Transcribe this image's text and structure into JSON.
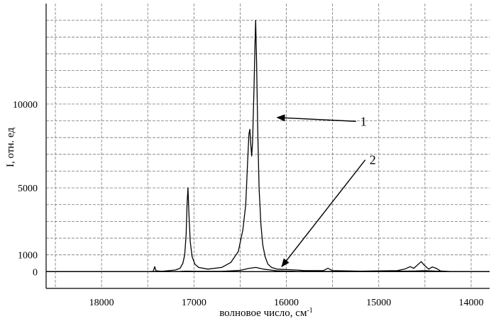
{
  "chart_data": {
    "type": "line",
    "xlabel": "волновое число, см",
    "xlabel_sup": "-1",
    "ylabel": "I, отн. ед",
    "xlim": [
      18600,
      13800
    ],
    "ylim": [
      -1000,
      16000
    ],
    "x_reversed": true,
    "grid": true,
    "grid_style": "dashed",
    "x_ticks": [
      18000,
      17000,
      16000,
      15000,
      14000
    ],
    "x_tick_labels": [
      "18000",
      "17000",
      "16000",
      "15000",
      "14000"
    ],
    "y_ticks": [
      0,
      1000,
      5000,
      10000
    ],
    "y_tick_labels": [
      "0",
      "1000",
      "5000",
      "10000"
    ],
    "series": [
      {
        "name": "1",
        "color": "#000000",
        "points": [
          [
            18600,
            0
          ],
          [
            17500,
            0
          ],
          [
            17440,
            20
          ],
          [
            17425,
            300
          ],
          [
            17410,
            50
          ],
          [
            17350,
            20
          ],
          [
            17200,
            100
          ],
          [
            17150,
            200
          ],
          [
            17120,
            500
          ],
          [
            17100,
            1000
          ],
          [
            17085,
            2200
          ],
          [
            17075,
            4000
          ],
          [
            17065,
            5000
          ],
          [
            17055,
            3500
          ],
          [
            17040,
            1800
          ],
          [
            17020,
            900
          ],
          [
            16990,
            450
          ],
          [
            16950,
            250
          ],
          [
            16850,
            150
          ],
          [
            16700,
            250
          ],
          [
            16600,
            550
          ],
          [
            16520,
            1200
          ],
          [
            16470,
            2500
          ],
          [
            16440,
            4000
          ],
          [
            16420,
            6500
          ],
          [
            16405,
            8200
          ],
          [
            16395,
            8500
          ],
          [
            16385,
            7600
          ],
          [
            16375,
            6900
          ],
          [
            16365,
            7800
          ],
          [
            16350,
            11000
          ],
          [
            16340,
            13500
          ],
          [
            16332,
            15000
          ],
          [
            16322,
            12500
          ],
          [
            16310,
            8500
          ],
          [
            16295,
            5000
          ],
          [
            16275,
            2800
          ],
          [
            16255,
            1600
          ],
          [
            16230,
            900
          ],
          [
            16200,
            450
          ],
          [
            16160,
            250
          ],
          [
            16100,
            150
          ],
          [
            15900,
            100
          ],
          [
            15800,
            60
          ],
          [
            15600,
            60
          ],
          [
            15550,
            200
          ],
          [
            15500,
            60
          ],
          [
            15200,
            30
          ],
          [
            14800,
            60
          ],
          [
            14720,
            150
          ],
          [
            14660,
            300
          ],
          [
            14620,
            200
          ],
          [
            14570,
            450
          ],
          [
            14540,
            600
          ],
          [
            14510,
            400
          ],
          [
            14460,
            150
          ],
          [
            14420,
            280
          ],
          [
            14380,
            200
          ],
          [
            14330,
            40
          ],
          [
            14200,
            0
          ],
          [
            13800,
            0
          ]
        ]
      },
      {
        "name": "2",
        "color": "#000000",
        "points": [
          [
            18600,
            0
          ],
          [
            17200,
            0
          ],
          [
            17080,
            30
          ],
          [
            17000,
            20
          ],
          [
            16700,
            20
          ],
          [
            16500,
            80
          ],
          [
            16400,
            200
          ],
          [
            16330,
            250
          ],
          [
            16250,
            150
          ],
          [
            16100,
            50
          ],
          [
            15900,
            20
          ],
          [
            15000,
            10
          ],
          [
            14600,
            40
          ],
          [
            14500,
            60
          ],
          [
            14300,
            10
          ],
          [
            13800,
            0
          ]
        ]
      }
    ],
    "annotations": [
      {
        "text": "1",
        "series": "1",
        "target": [
          16100,
          9200
        ],
        "label_at": [
          15200,
          8800
        ]
      },
      {
        "text": "2",
        "series": "2",
        "target": [
          16050,
          300
        ],
        "label_at": [
          15100,
          6500
        ]
      }
    ]
  }
}
